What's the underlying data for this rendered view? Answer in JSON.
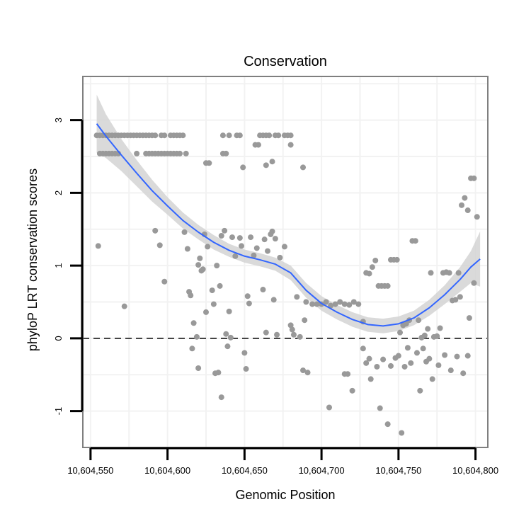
{
  "chart_data": {
    "type": "scatter",
    "title": "Conservation",
    "xlabel": "Genomic Position",
    "ylabel": "phyloP LRT conservation scores",
    "xlim": [
      10604545,
      10604808
    ],
    "ylim": [
      -1.5,
      3.6
    ],
    "x_ticks": [
      10604550,
      10604600,
      10604650,
      10604700,
      10604750,
      10604800
    ],
    "x_tick_labels": [
      "10,604,550",
      "10,604,600",
      "10,604,650",
      "10,604,700",
      "10,604,750",
      "10,604,800"
    ],
    "y_ticks": [
      -1,
      0,
      1,
      2,
      3
    ],
    "y_tick_labels": [
      "-1",
      "0",
      "1",
      "2",
      "3"
    ],
    "grid": true,
    "reference_line": {
      "y": 0,
      "style": "dashed"
    },
    "colors": {
      "points": "#999999",
      "smooth_line": "#3366ff",
      "confidence_band": "#d4d4d4",
      "panel_border": "#7f7f7f",
      "grid": "#f2f2f2",
      "reference_line": "#000000"
    },
    "points": [
      [
        10604554,
        2.79
      ],
      [
        10604556,
        2.79
      ],
      [
        10604558,
        2.79
      ],
      [
        10604560,
        2.79
      ],
      [
        10604562,
        2.79
      ],
      [
        10604564,
        2.79
      ],
      [
        10604566,
        2.79
      ],
      [
        10604568,
        2.79
      ],
      [
        10604570,
        2.79
      ],
      [
        10604572,
        2.79
      ],
      [
        10604574,
        2.79
      ],
      [
        10604576,
        2.79
      ],
      [
        10604578,
        2.79
      ],
      [
        10604580,
        2.79
      ],
      [
        10604582,
        2.79
      ],
      [
        10604584,
        2.79
      ],
      [
        10604586,
        2.79
      ],
      [
        10604588,
        2.79
      ],
      [
        10604590,
        2.79
      ],
      [
        10604592,
        2.79
      ],
      [
        10604596,
        2.79
      ],
      [
        10604598,
        2.79
      ],
      [
        10604602,
        2.79
      ],
      [
        10604604,
        2.79
      ],
      [
        10604606,
        2.79
      ],
      [
        10604608,
        2.79
      ],
      [
        10604610,
        2.79
      ],
      [
        10604636,
        2.79
      ],
      [
        10604640,
        2.79
      ],
      [
        10604645,
        2.79
      ],
      [
        10604647,
        2.79
      ],
      [
        10604660,
        2.79
      ],
      [
        10604662,
        2.79
      ],
      [
        10604664,
        2.79
      ],
      [
        10604666,
        2.79
      ],
      [
        10604670,
        2.79
      ],
      [
        10604672,
        2.79
      ],
      [
        10604676,
        2.79
      ],
      [
        10604678,
        2.79
      ],
      [
        10604680,
        2.79
      ],
      [
        10604556,
        2.54
      ],
      [
        10604558,
        2.54
      ],
      [
        10604560,
        2.54
      ],
      [
        10604562,
        2.54
      ],
      [
        10604564,
        2.54
      ],
      [
        10604566,
        2.54
      ],
      [
        10604568,
        2.54
      ],
      [
        10604580,
        2.54
      ],
      [
        10604586,
        2.54
      ],
      [
        10604588,
        2.54
      ],
      [
        10604590,
        2.54
      ],
      [
        10604592,
        2.54
      ],
      [
        10604594,
        2.54
      ],
      [
        10604596,
        2.54
      ],
      [
        10604598,
        2.54
      ],
      [
        10604600,
        2.54
      ],
      [
        10604602,
        2.54
      ],
      [
        10604604,
        2.54
      ],
      [
        10604606,
        2.54
      ],
      [
        10604608,
        2.54
      ],
      [
        10604612,
        2.54
      ],
      [
        10604636,
        2.54
      ],
      [
        10604638,
        2.54
      ],
      [
        10604657,
        2.66
      ],
      [
        10604659,
        2.66
      ],
      [
        10604680,
        2.66
      ],
      [
        10604625,
        2.41
      ],
      [
        10604627,
        2.41
      ],
      [
        10604668,
        2.43
      ],
      [
        10604649,
        2.35
      ],
      [
        10604664,
        2.38
      ],
      [
        10604688,
        2.35
      ],
      [
        10604555,
        1.27
      ],
      [
        10604572,
        0.44
      ],
      [
        10604592,
        1.48
      ],
      [
        10604595,
        1.28
      ],
      [
        10604598,
        0.78
      ],
      [
        10604611,
        1.46
      ],
      [
        10604613,
        1.23
      ],
      [
        10604614,
        0.64
      ],
      [
        10604615,
        0.59
      ],
      [
        10604617,
        0.21
      ],
      [
        10604619,
        0.02
      ],
      [
        10604620,
        1.01
      ],
      [
        10604621,
        1.1
      ],
      [
        10604622,
        0.93
      ],
      [
        10604623,
        0.95
      ],
      [
        10604624,
        1.43
      ],
      [
        10604625,
        0.36
      ],
      [
        10604626,
        1.26
      ],
      [
        10604629,
        0.66
      ],
      [
        10604630,
        0.47
      ],
      [
        10604632,
        1.0
      ],
      [
        10604634,
        0.72
      ],
      [
        10604635,
        1.41
      ],
      [
        10604637,
        1.48
      ],
      [
        10604638,
        0.06
      ],
      [
        10604640,
        0.37
      ],
      [
        10604642,
        1.39
      ],
      [
        10604644,
        1.13
      ],
      [
        10604647,
        1.38
      ],
      [
        10604648,
        1.27
      ],
      [
        10604652,
        0.58
      ],
      [
        10604653,
        0.48
      ],
      [
        10604654,
        1.39
      ],
      [
        10604656,
        1.14
      ],
      [
        10604658,
        1.24
      ],
      [
        10604662,
        0.67
      ],
      [
        10604663,
        1.36
      ],
      [
        10604664,
        0.08
      ],
      [
        10604665,
        1.2
      ],
      [
        10604667,
        1.43
      ],
      [
        10604668,
        1.47
      ],
      [
        10604669,
        0.53
      ],
      [
        10604670,
        1.37
      ],
      [
        10604671,
        0.05
      ],
      [
        10604673,
        1.11
      ],
      [
        10604676,
        1.26
      ],
      [
        10604680,
        0.18
      ],
      [
        10604681,
        0.12
      ],
      [
        10604682,
        0.05
      ],
      [
        10604684,
        0.57
      ],
      [
        10604686,
        0.02
      ],
      [
        10604689,
        0.25
      ],
      [
        10604690,
        0.5
      ],
      [
        10604694,
        0.47
      ],
      [
        10604697,
        0.47
      ],
      [
        10604700,
        0.47
      ],
      [
        10604703,
        0.5
      ],
      [
        10604706,
        0.45
      ],
      [
        10604709,
        0.47
      ],
      [
        10604712,
        0.5
      ],
      [
        10604715,
        0.47
      ],
      [
        10604718,
        0.46
      ],
      [
        10604721,
        0.5
      ],
      [
        10604724,
        0.47
      ],
      [
        10604727,
        0.23
      ],
      [
        10604729,
        0.9
      ],
      [
        10604731,
        0.89
      ],
      [
        10604733,
        0.98
      ],
      [
        10604735,
        1.07
      ],
      [
        10604737,
        0.72
      ],
      [
        10604739,
        0.72
      ],
      [
        10604741,
        0.72
      ],
      [
        10604743,
        0.72
      ],
      [
        10604745,
        1.08
      ],
      [
        10604747,
        1.08
      ],
      [
        10604749,
        1.08
      ],
      [
        10604751,
        0.08
      ],
      [
        10604753,
        0.18
      ],
      [
        10604755,
        0.2
      ],
      [
        10604757,
        0.25
      ],
      [
        10604759,
        1.34
      ],
      [
        10604761,
        1.34
      ],
      [
        10604763,
        0.25
      ],
      [
        10604765,
        0.01
      ],
      [
        10604767,
        0.04
      ],
      [
        10604769,
        0.13
      ],
      [
        10604771,
        0.9
      ],
      [
        10604773,
        0.02
      ],
      [
        10604775,
        0.03
      ],
      [
        10604777,
        0.14
      ],
      [
        10604779,
        0.9
      ],
      [
        10604781,
        0.91
      ],
      [
        10604783,
        0.9
      ],
      [
        10604785,
        0.52
      ],
      [
        10604787,
        0.53
      ],
      [
        10604789,
        0.9
      ],
      [
        10604791,
        1.83
      ],
      [
        10604793,
        1.93
      ],
      [
        10604795,
        1.76
      ],
      [
        10604797,
        2.2
      ],
      [
        10604799,
        2.2
      ],
      [
        10604801,
        1.67
      ],
      [
        10604790,
        0.57
      ],
      [
        10604796,
        0.28
      ],
      [
        10604799,
        0.76
      ],
      [
        10604616,
        -0.14
      ],
      [
        10604620,
        -0.41
      ],
      [
        10604631,
        -0.48
      ],
      [
        10604633,
        -0.47
      ],
      [
        10604635,
        -0.81
      ],
      [
        10604639,
        -0.11
      ],
      [
        10604641,
        0.01
      ],
      [
        10604650,
        -0.2
      ],
      [
        10604651,
        -0.42
      ],
      [
        10604688,
        -0.44
      ],
      [
        10604691,
        -0.47
      ],
      [
        10604705,
        -0.95
      ],
      [
        10604715,
        -0.49
      ],
      [
        10604717,
        -0.49
      ],
      [
        10604720,
        -0.72
      ],
      [
        10604727,
        -0.14
      ],
      [
        10604729,
        -0.34
      ],
      [
        10604731,
        -0.28
      ],
      [
        10604732,
        -0.56
      ],
      [
        10604736,
        -0.39
      ],
      [
        10604738,
        -0.96
      ],
      [
        10604740,
        -0.29
      ],
      [
        10604743,
        -1.18
      ],
      [
        10604745,
        -0.38
      ],
      [
        10604748,
        -0.27
      ],
      [
        10604750,
        -0.24
      ],
      [
        10604752,
        -1.3
      ],
      [
        10604754,
        -0.39
      ],
      [
        10604756,
        -0.13
      ],
      [
        10604758,
        -0.34
      ],
      [
        10604762,
        -0.2
      ],
      [
        10604764,
        -0.72
      ],
      [
        10604766,
        -0.14
      ],
      [
        10604768,
        -0.32
      ],
      [
        10604770,
        -0.28
      ],
      [
        10604772,
        -0.56
      ],
      [
        10604776,
        -0.37
      ],
      [
        10604780,
        -0.23
      ],
      [
        10604784,
        -0.44
      ],
      [
        10604788,
        -0.25
      ],
      [
        10604792,
        -0.48
      ],
      [
        10604795,
        -0.24
      ]
    ],
    "smooth_fit": [
      [
        10604554,
        2.95
      ],
      [
        10604560,
        2.78
      ],
      [
        10604570,
        2.52
      ],
      [
        10604580,
        2.27
      ],
      [
        10604590,
        2.03
      ],
      [
        10604600,
        1.82
      ],
      [
        10604610,
        1.62
      ],
      [
        10604620,
        1.46
      ],
      [
        10604630,
        1.32
      ],
      [
        10604640,
        1.21
      ],
      [
        10604650,
        1.13
      ],
      [
        10604660,
        1.08
      ],
      [
        10604670,
        1.02
      ],
      [
        10604680,
        0.9
      ],
      [
        10604690,
        0.66
      ],
      [
        10604700,
        0.48
      ],
      [
        10604710,
        0.36
      ],
      [
        10604720,
        0.26
      ],
      [
        10604730,
        0.19
      ],
      [
        10604740,
        0.17
      ],
      [
        10604750,
        0.2
      ],
      [
        10604760,
        0.28
      ],
      [
        10604770,
        0.42
      ],
      [
        10604780,
        0.6
      ],
      [
        10604790,
        0.81
      ],
      [
        10604797,
        0.98
      ],
      [
        10604803,
        1.09
      ]
    ],
    "band_halfwidth": [
      0.4,
      0.3,
      0.22,
      0.18,
      0.15,
      0.12,
      0.11,
      0.1,
      0.1,
      0.09,
      0.09,
      0.09,
      0.09,
      0.1,
      0.1,
      0.1,
      0.1,
      0.1,
      0.1,
      0.1,
      0.1,
      0.1,
      0.11,
      0.13,
      0.17,
      0.22,
      0.38
    ]
  }
}
